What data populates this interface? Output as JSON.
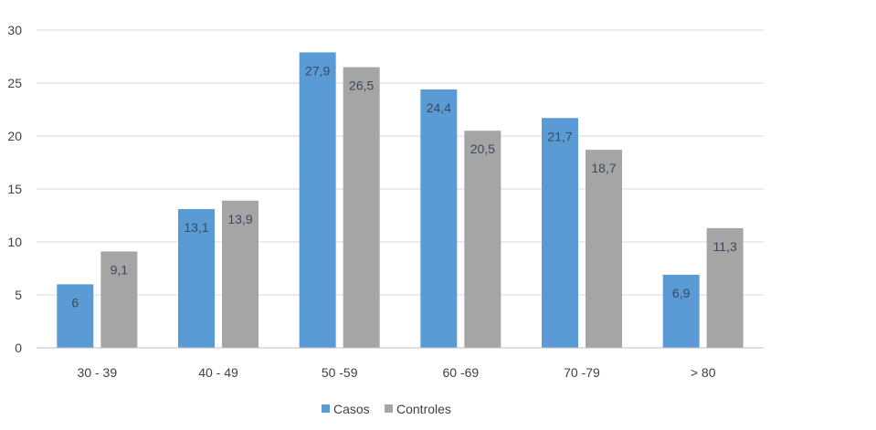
{
  "chart_data": {
    "type": "bar",
    "categories": [
      "30 - 39",
      "40 - 49",
      "50 -59",
      "60 -69",
      "70 -79",
      "> 80"
    ],
    "series": [
      {
        "name": "Casos",
        "values": [
          6,
          13.1,
          27.9,
          24.4,
          21.7,
          6.9
        ],
        "labels": [
          "6",
          "13,1",
          "27,9",
          "24,4",
          "21,7",
          "6,9"
        ],
        "color": "#5b9bd5"
      },
      {
        "name": "Controles",
        "values": [
          9.1,
          13.9,
          26.5,
          20.5,
          18.7,
          11.3
        ],
        "labels": [
          "9,1",
          "13,9",
          "26,5",
          "20,5",
          "18,7",
          "11,3"
        ],
        "color": "#a5a5a5"
      }
    ],
    "ylim": [
      0,
      30
    ],
    "yticks": [
      0,
      5,
      10,
      15,
      20,
      25,
      30
    ],
    "title": "",
    "xlabel": "",
    "ylabel": "",
    "grid": true,
    "legend": "bottom"
  }
}
